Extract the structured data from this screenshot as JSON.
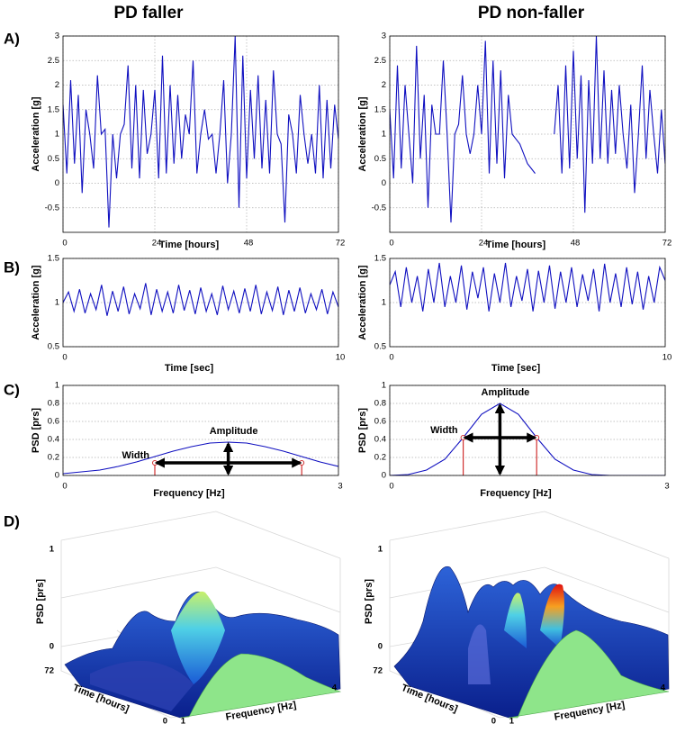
{
  "column_titles": [
    "PD faller",
    "PD non-faller"
  ],
  "panel_labels": [
    "A)",
    "B)",
    "C)",
    "D)"
  ],
  "chart_data": [
    {
      "type": "line",
      "xlabel": "Time [hours]",
      "ylabel": "Acceleration [g]",
      "color": "#1010c0",
      "grid": true,
      "xlim": [
        0,
        72
      ],
      "ylim": [
        -1,
        3
      ],
      "xticks": [
        0,
        24,
        48,
        72
      ],
      "yticks": [
        -0.5,
        0,
        0.5,
        1,
        1.5,
        2,
        2.5,
        3
      ],
      "x": [
        0,
        1,
        2,
        3,
        4,
        5,
        6,
        7,
        8,
        9,
        10,
        11,
        12,
        13,
        14,
        15,
        16,
        17,
        18,
        19,
        20,
        21,
        22,
        23,
        24,
        25,
        26,
        27,
        28,
        29,
        30,
        31,
        32,
        33,
        34,
        35,
        36,
        37,
        38,
        39,
        40,
        41,
        42,
        43,
        44,
        45,
        46,
        47,
        48,
        49,
        50,
        51,
        52,
        53,
        54,
        55,
        56,
        57,
        58,
        59,
        60,
        61,
        62,
        63,
        64,
        65,
        66,
        67,
        68,
        69,
        70,
        71,
        72
      ],
      "values": [
        1.6,
        0.2,
        2.1,
        0.4,
        1.8,
        -0.2,
        1.5,
        1.0,
        0.3,
        2.2,
        1.0,
        1.1,
        -0.9,
        1.0,
        0.1,
        1.0,
        1.2,
        2.4,
        0.3,
        2.0,
        0.1,
        1.9,
        0.6,
        1.0,
        1.9,
        0.1,
        2.6,
        0.2,
        2.0,
        0.4,
        1.8,
        0.5,
        1.4,
        1.0,
        2.5,
        0.2,
        1.0,
        1.5,
        0.9,
        1.0,
        0.2,
        1.0,
        2.1,
        0.0,
        1.0,
        3.0,
        -0.5,
        2.6,
        0.1,
        1.9,
        0.5,
        2.2,
        0.3,
        1.7,
        0.2,
        2.3,
        1.0,
        0.8,
        -0.8,
        1.4,
        1.0,
        0.2,
        1.8,
        1.0,
        0.4,
        1.0,
        0.2,
        2.0,
        0.1,
        1.7,
        0.3,
        1.6,
        0.9
      ]
    },
    {
      "type": "line",
      "xlabel": "Time [hours]",
      "ylabel": "Acceleration [g]",
      "color": "#1010c0",
      "grid": true,
      "xlim": [
        0,
        72
      ],
      "ylim": [
        -1,
        3
      ],
      "xticks": [
        0,
        24,
        48,
        72
      ],
      "yticks": [
        -0.5,
        0,
        0.5,
        1,
        1.5,
        2,
        2.5,
        3
      ],
      "x": [
        0,
        1,
        2,
        3,
        4,
        5,
        6,
        7,
        8,
        9,
        10,
        11,
        12,
        13,
        14,
        15,
        16,
        17,
        18,
        19,
        20,
        21,
        22,
        23,
        24,
        25,
        26,
        27,
        28,
        29,
        30,
        31,
        32,
        33,
        34,
        35,
        36,
        37,
        38,
        39,
        40,
        41,
        42,
        43,
        44,
        45,
        46,
        47,
        48,
        49,
        50,
        51,
        52,
        53,
        54,
        55,
        56,
        57,
        58,
        59,
        60,
        61,
        62,
        63,
        64,
        65,
        66,
        67,
        68,
        69,
        70,
        71,
        72
      ],
      "values": [
        1.5,
        0.1,
        2.4,
        0.3,
        2.0,
        1.0,
        0.0,
        2.8,
        0.5,
        1.8,
        -0.5,
        1.6,
        1.0,
        1.0,
        2.5,
        1.0,
        -0.8,
        1.0,
        1.2,
        2.2,
        1.0,
        0.6,
        1.0,
        2.0,
        1.0,
        2.9,
        0.2,
        2.5,
        0.4,
        2.3,
        0.1,
        1.8,
        1.0,
        0.9,
        0.8,
        0.6,
        0.4,
        0.3,
        0.2,
        null,
        null,
        null,
        null,
        1.0,
        2.0,
        0.2,
        2.4,
        0.3,
        2.7,
        0.5,
        2.2,
        -0.6,
        2.1,
        0.4,
        3.0,
        0.5,
        2.3,
        0.4,
        1.9,
        0.6,
        2.0,
        1.0,
        0.3,
        1.6,
        -0.2,
        1.0,
        2.4,
        0.5,
        1.9,
        1.0,
        0.2,
        1.5,
        0.4
      ]
    },
    {
      "type": "line",
      "xlabel": "Time [sec]",
      "ylabel": "Acceleration [g]",
      "color": "#1010c0",
      "grid": true,
      "xlim": [
        0,
        10
      ],
      "ylim": [
        0.5,
        1.5
      ],
      "xticks": [
        0,
        10
      ],
      "yticks": [
        0.5,
        1,
        1.5
      ],
      "x": [
        0,
        0.2,
        0.4,
        0.6,
        0.8,
        1,
        1.2,
        1.4,
        1.6,
        1.8,
        2,
        2.2,
        2.4,
        2.6,
        2.8,
        3,
        3.2,
        3.4,
        3.6,
        3.8,
        4,
        4.2,
        4.4,
        4.6,
        4.8,
        5,
        5.2,
        5.4,
        5.6,
        5.8,
        6,
        6.2,
        6.4,
        6.6,
        6.8,
        7,
        7.2,
        7.4,
        7.6,
        7.8,
        8,
        8.2,
        8.4,
        8.6,
        8.8,
        9,
        9.2,
        9.4,
        9.6,
        9.8,
        10
      ],
      "values": [
        1.0,
        1.12,
        0.9,
        1.15,
        0.88,
        1.1,
        0.92,
        1.2,
        0.85,
        1.13,
        0.9,
        1.18,
        0.87,
        1.1,
        0.93,
        1.22,
        0.86,
        1.15,
        0.9,
        1.12,
        0.88,
        1.2,
        0.91,
        1.14,
        0.87,
        1.17,
        0.9,
        1.1,
        0.86,
        1.19,
        0.92,
        1.13,
        0.88,
        1.16,
        0.9,
        1.2,
        0.87,
        1.12,
        0.91,
        1.18,
        0.86,
        1.14,
        0.9,
        1.17,
        0.88,
        1.1,
        0.92,
        1.15,
        0.87,
        1.12,
        0.95
      ]
    },
    {
      "type": "line",
      "xlabel": "Time [sec]",
      "ylabel": "Acceleration [g]",
      "color": "#1010c0",
      "grid": true,
      "xlim": [
        0,
        10
      ],
      "ylim": [
        0.5,
        1.5
      ],
      "xticks": [
        0,
        10
      ],
      "yticks": [
        0.5,
        1,
        1.5
      ],
      "x": [
        0,
        0.2,
        0.4,
        0.6,
        0.8,
        1,
        1.2,
        1.4,
        1.6,
        1.8,
        2,
        2.2,
        2.4,
        2.6,
        2.8,
        3,
        3.2,
        3.4,
        3.6,
        3.8,
        4,
        4.2,
        4.4,
        4.6,
        4.8,
        5,
        5.2,
        5.4,
        5.6,
        5.8,
        6,
        6.2,
        6.4,
        6.6,
        6.8,
        7,
        7.2,
        7.4,
        7.6,
        7.8,
        8,
        8.2,
        8.4,
        8.6,
        8.8,
        9,
        9.2,
        9.4,
        9.6,
        9.8,
        10
      ],
      "values": [
        1.2,
        1.35,
        0.95,
        1.4,
        1.0,
        1.3,
        0.9,
        1.38,
        1.0,
        1.45,
        0.95,
        1.3,
        1.0,
        1.42,
        0.92,
        1.35,
        1.05,
        1.4,
        0.9,
        1.33,
        1.0,
        1.45,
        0.95,
        1.3,
        1.02,
        1.38,
        0.9,
        1.36,
        1.0,
        1.42,
        0.93,
        1.35,
        1.0,
        1.4,
        0.95,
        1.32,
        1.02,
        1.38,
        0.9,
        1.44,
        1.0,
        1.33,
        0.95,
        1.4,
        0.98,
        1.35,
        0.92,
        1.3,
        1.0,
        1.4,
        1.25
      ]
    },
    {
      "type": "line",
      "xlabel": "Frequency [Hz]",
      "ylabel": "PSD [prs]",
      "color": "#1010c0",
      "grid": true,
      "xlim": [
        0,
        3
      ],
      "ylim": [
        0,
        1
      ],
      "xticks": [
        0,
        3
      ],
      "yticks": [
        0,
        0.2,
        0.4,
        0.6,
        0.8,
        1
      ],
      "x": [
        0,
        0.2,
        0.4,
        0.6,
        0.8,
        1,
        1.2,
        1.4,
        1.6,
        1.8,
        2,
        2.2,
        2.4,
        2.6,
        2.8,
        3
      ],
      "values": [
        0.02,
        0.04,
        0.06,
        0.1,
        0.15,
        0.21,
        0.27,
        0.32,
        0.36,
        0.37,
        0.36,
        0.32,
        0.27,
        0.21,
        0.15,
        0.1
      ],
      "annotations": [
        "Amplitude",
        "Width"
      ],
      "amplitude_x": 1.8,
      "amplitude": 0.37,
      "width_x": [
        1.0,
        2.6
      ],
      "width_y": 0.14
    },
    {
      "type": "line",
      "xlabel": "Frequency [Hz]",
      "ylabel": "PSD [prs]",
      "color": "#1010c0",
      "grid": true,
      "xlim": [
        0,
        3
      ],
      "ylim": [
        0,
        1
      ],
      "xticks": [
        0,
        3
      ],
      "yticks": [
        0,
        0.2,
        0.4,
        0.6,
        0.8,
        1
      ],
      "x": [
        0,
        0.2,
        0.4,
        0.6,
        0.8,
        1,
        1.2,
        1.4,
        1.6,
        1.8,
        2,
        2.2,
        2.4,
        2.6,
        2.8,
        3
      ],
      "values": [
        0,
        0.01,
        0.06,
        0.18,
        0.42,
        0.68,
        0.8,
        0.68,
        0.42,
        0.18,
        0.06,
        0.01,
        0,
        0,
        0,
        0
      ],
      "annotations": [
        "Amplitude",
        "Width"
      ],
      "amplitude_x": 1.2,
      "amplitude": 0.8,
      "width_x": [
        0.8,
        1.6
      ],
      "width_y": 0.42
    },
    {
      "type": "surface",
      "xlabel": "Frequency [Hz]",
      "ylabel": "Time [hours]",
      "zlabel": "PSD [prs]",
      "xticks": [
        1,
        4
      ],
      "yticks": [
        72,
        0
      ],
      "zticks": [
        0,
        1
      ]
    },
    {
      "type": "surface",
      "xlabel": "Frequency [Hz]",
      "ylabel": "Time [hours]",
      "zlabel": "PSD [prs]",
      "xticks": [
        1,
        4
      ],
      "yticks": [
        72,
        0
      ],
      "zticks": [
        0,
        1
      ]
    }
  ]
}
